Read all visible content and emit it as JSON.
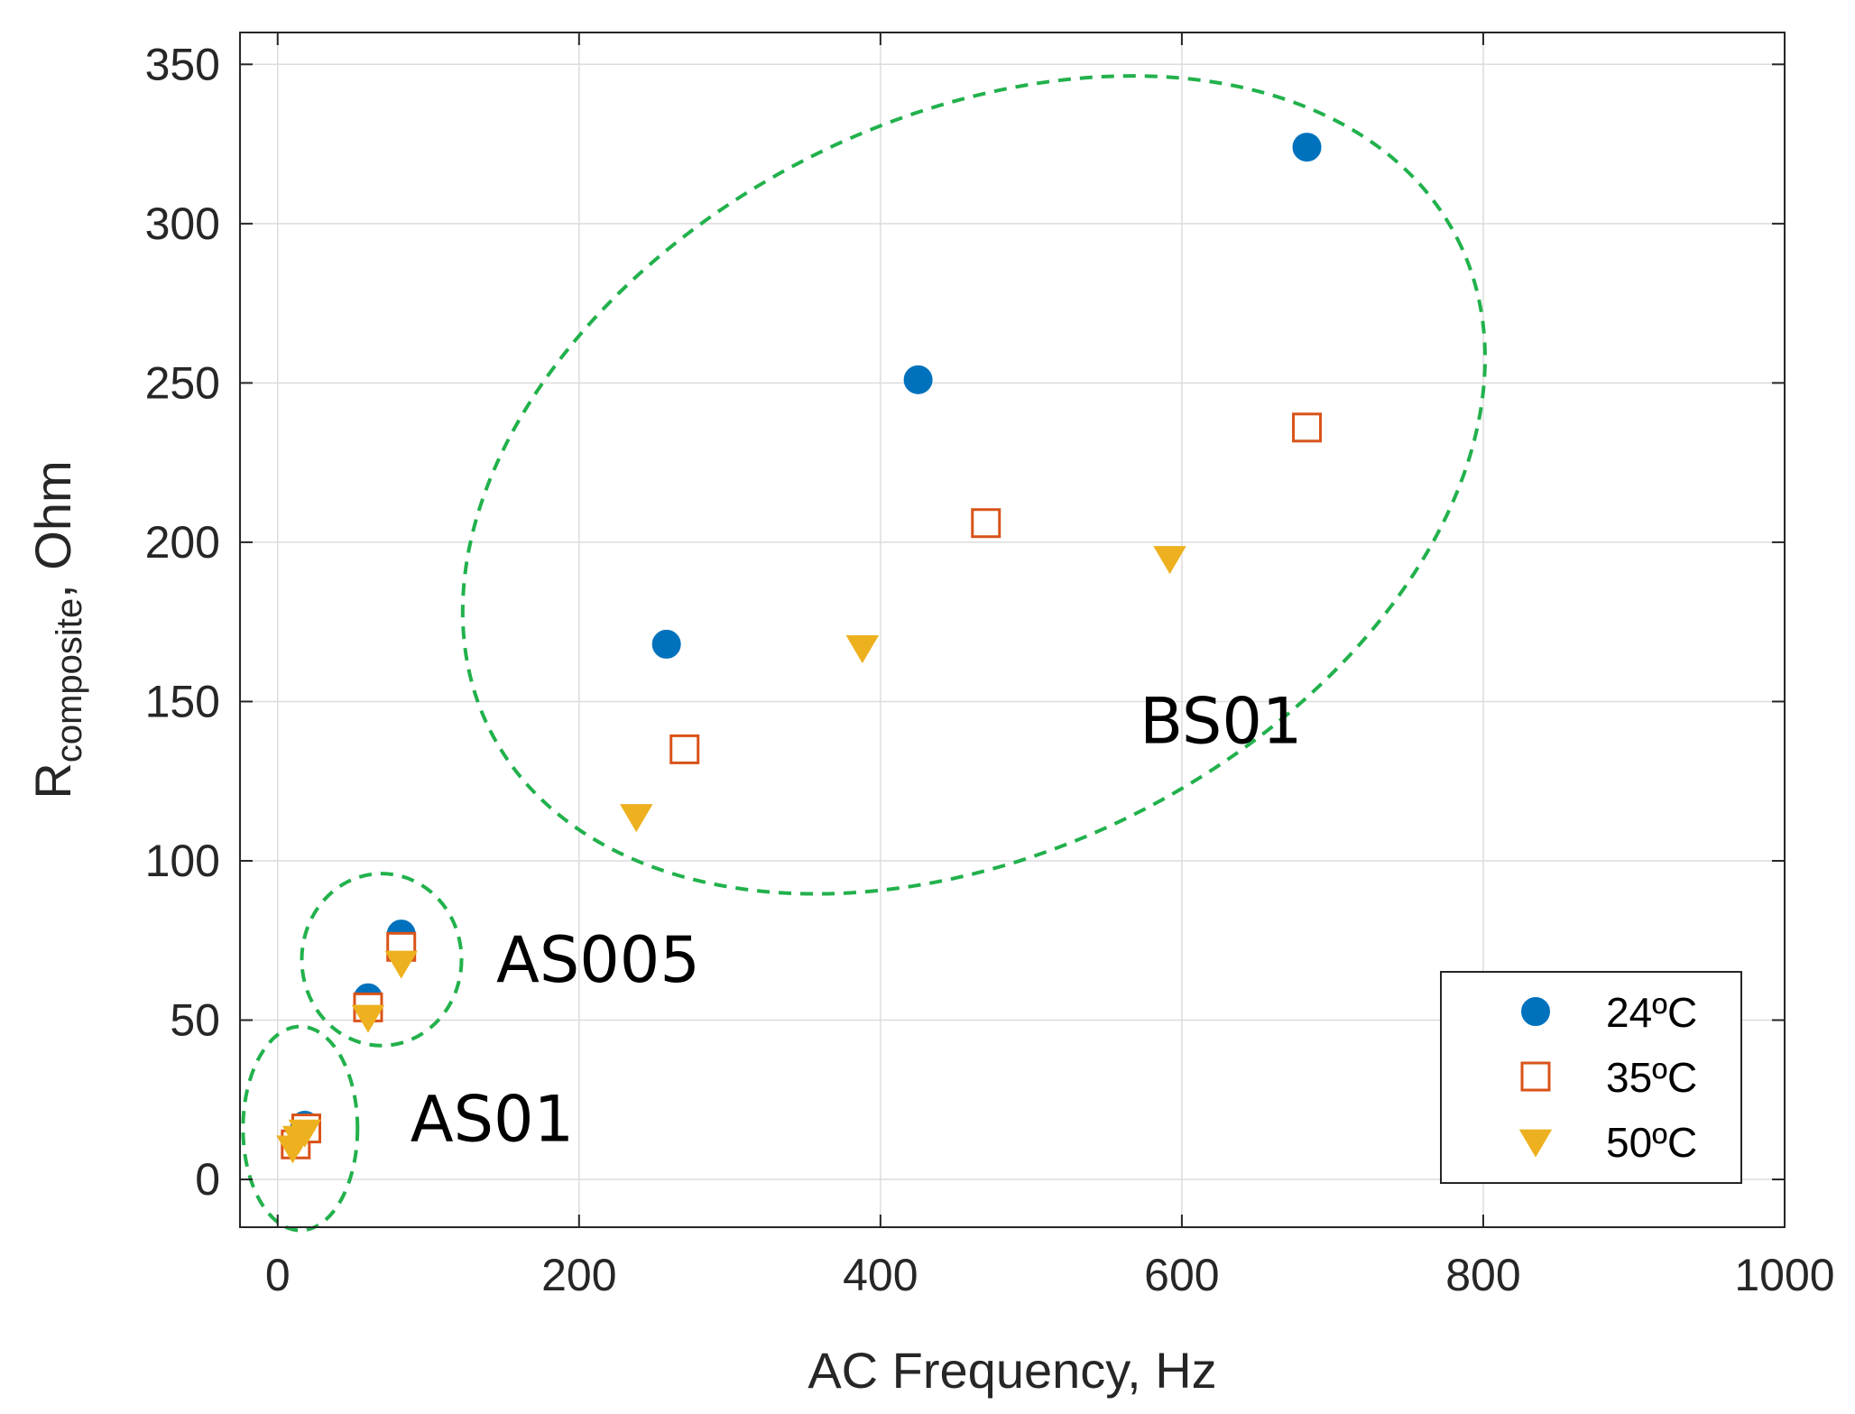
{
  "chart_data": {
    "type": "scatter",
    "title": "",
    "xlabel": "AC Frequency, Hz",
    "ylabel": {
      "main": "R",
      "subscript": "composite",
      "suffix": ", Ohm"
    },
    "xlim": [
      -25,
      1000
    ],
    "ylim": [
      -15,
      360
    ],
    "x_ticks": [
      0,
      200,
      400,
      600,
      800,
      1000
    ],
    "x_tick_labels": [
      "0",
      "200",
      "400",
      "600",
      "800",
      "1000"
    ],
    "y_ticks": [
      0,
      50,
      100,
      150,
      200,
      250,
      300,
      350
    ],
    "y_tick_labels": [
      "0",
      "50",
      "100",
      "150",
      "200",
      "250",
      "300",
      "350"
    ],
    "grid": true,
    "legend_position": "bottom-right",
    "series": [
      {
        "name": "24ºC",
        "marker": "circle",
        "color": "#0072BD",
        "filled": true,
        "points": [
          {
            "x": 18,
            "y": 17
          },
          {
            "x": 60,
            "y": 57
          },
          {
            "x": 82,
            "y": 77
          },
          {
            "x": 258,
            "y": 168
          },
          {
            "x": 425,
            "y": 251
          },
          {
            "x": 683,
            "y": 324
          }
        ]
      },
      {
        "name": "35ºC",
        "marker": "square",
        "color": "#D95319",
        "filled": false,
        "points": [
          {
            "x": 12,
            "y": 11
          },
          {
            "x": 19,
            "y": 16
          },
          {
            "x": 60,
            "y": 54
          },
          {
            "x": 82,
            "y": 73
          },
          {
            "x": 270,
            "y": 135
          },
          {
            "x": 470,
            "y": 206
          },
          {
            "x": 683,
            "y": 236
          }
        ]
      },
      {
        "name": "50ºC",
        "marker": "triangle-down",
        "color": "#EDB120",
        "filled": true,
        "points": [
          {
            "x": 10,
            "y": 10
          },
          {
            "x": 14,
            "y": 13
          },
          {
            "x": 18,
            "y": 15
          },
          {
            "x": 60,
            "y": 51
          },
          {
            "x": 82,
            "y": 68
          },
          {
            "x": 238,
            "y": 114
          },
          {
            "x": 388,
            "y": 167
          },
          {
            "x": 592,
            "y": 195
          }
        ]
      }
    ],
    "annotations": [
      {
        "text": "AS01",
        "x": 88,
        "y": 12
      },
      {
        "text": "AS005",
        "x": 145,
        "y": 62
      },
      {
        "text": "BS01",
        "x": 572,
        "y": 137
      }
    ],
    "group_outlines": [
      {
        "group": "AS01",
        "center_x": 15,
        "center_y": 16,
        "radius_x": 38,
        "radius_y": 32,
        "rotation_deg": 0
      },
      {
        "group": "AS005",
        "center_x": 69,
        "center_y": 69,
        "radius_x": 53,
        "radius_y": 27,
        "rotation_deg": 0
      },
      {
        "group": "BS01",
        "center_x": 462,
        "center_y": 218,
        "radius_x": 360,
        "radius_y": 115,
        "rotation_deg": -27
      }
    ],
    "outline_color": "#22b14c"
  }
}
